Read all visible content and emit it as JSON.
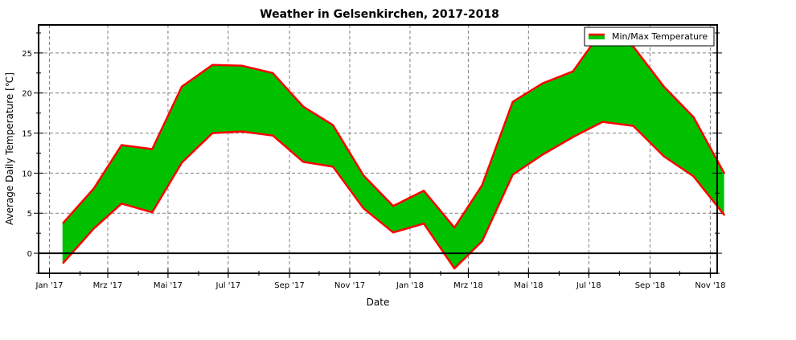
{
  "chart_data": {
    "type": "area",
    "title": "Weather in Gelsenkirchen, 2017-2018",
    "xlabel": "Date",
    "ylabel": "Average Daily Temperature [℃]",
    "x_ticks": [
      "Jan '17",
      "Mrz '17",
      "Mai '17",
      "Jul '17",
      "Sep '17",
      "Nov '17",
      "Jan '18",
      "Mrz '18",
      "Mai '18",
      "Jul '18",
      "Sep '18",
      "Nov '18"
    ],
    "y_ticks": [
      "0",
      "5",
      "10",
      "15",
      "20",
      "25"
    ],
    "ylim": [
      -2.5,
      28.5
    ],
    "xlim": [
      "2016-12-21",
      "2018-11-08"
    ],
    "grid": true,
    "legend_position": "top-right",
    "series": [
      {
        "name": "Min/Max Temperature",
        "fill_color": "#00c000",
        "line_color": "#ff0000",
        "x": [
          "2017-01-15",
          "2017-02-15",
          "2017-03-15",
          "2017-04-15",
          "2017-05-15",
          "2017-06-15",
          "2017-07-15",
          "2017-08-15",
          "2017-09-15",
          "2017-10-15",
          "2017-11-15",
          "2017-12-15",
          "2018-01-15",
          "2018-02-15",
          "2018-03-15",
          "2018-04-15",
          "2018-05-15",
          "2018-06-15",
          "2018-07-15",
          "2018-08-15",
          "2018-09-15",
          "2018-10-15",
          "2018-11-15"
        ],
        "max": [
          3.8,
          8.1,
          13.5,
          13.0,
          20.8,
          23.5,
          23.4,
          22.5,
          18.3,
          16.0,
          9.7,
          5.9,
          7.8,
          3.2,
          8.5,
          18.9,
          21.2,
          22.7,
          27.9,
          25.8,
          20.8,
          17.0,
          10.0
        ],
        "min": [
          -1.2,
          3.1,
          6.2,
          5.1,
          11.3,
          15.0,
          15.2,
          14.7,
          11.4,
          10.8,
          5.6,
          2.6,
          3.7,
          -1.9,
          1.5,
          9.8,
          12.3,
          14.5,
          16.4,
          15.9,
          12.1,
          9.6,
          4.8
        ]
      }
    ]
  }
}
